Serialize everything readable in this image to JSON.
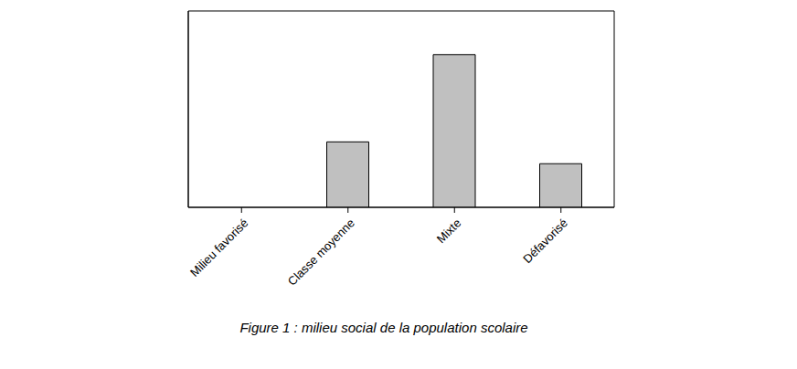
{
  "chart_data": {
    "type": "bar",
    "title": "Figure 1 : milieu social de la population scolaire",
    "categories": [
      "Milieu favorisé",
      "Classe moyenne",
      "Mixte",
      "Défavorisé"
    ],
    "values": [
      0,
      3,
      7,
      2
    ],
    "color": "#c0c0c0",
    "ylim": [
      0,
      9
    ],
    "yticks": [
      0,
      1,
      2,
      3,
      4,
      5,
      6,
      7,
      8,
      9
    ],
    "grid": true,
    "tick_labels": "x"
  }
}
